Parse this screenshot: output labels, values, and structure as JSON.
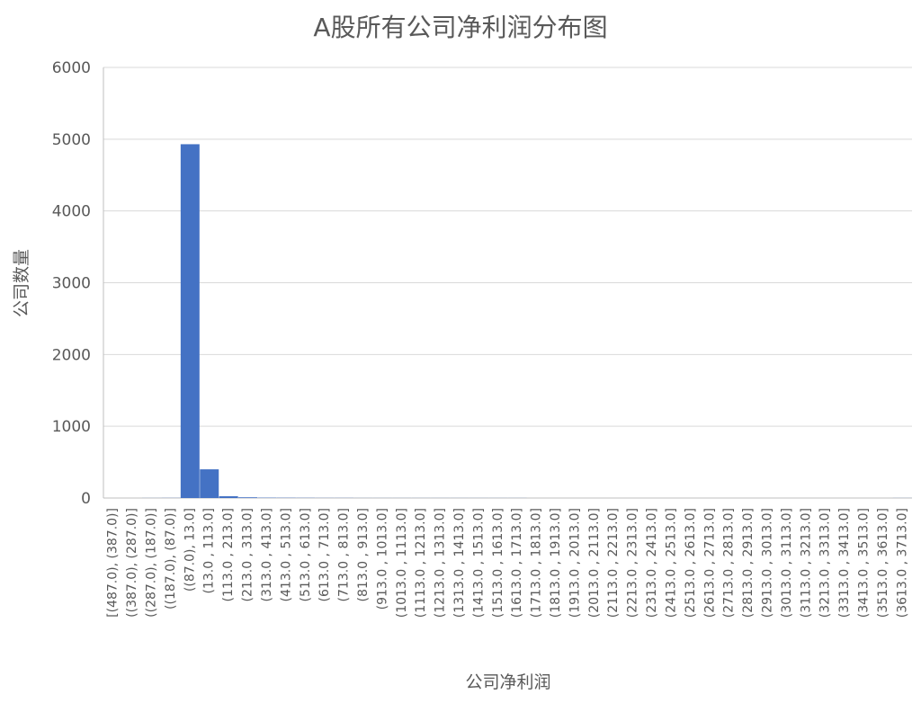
{
  "chart_data": {
    "type": "bar",
    "title": "A股所有公司净利润分布图",
    "xlabel": "公司净利润",
    "ylabel": "公司数量",
    "ylim": [
      0,
      6000
    ],
    "yticks": [
      0,
      1000,
      2000,
      3000,
      4000,
      5000,
      6000
    ],
    "grid": true,
    "bar_color": "#4472C4",
    "categories": [
      "[(487.0), (387.0)]",
      "((387.0), (287.0)]",
      "((287.0), (187.0)]",
      "((187.0), (87.0)]",
      "((87.0), 13.0]",
      "(13.0 , 113.0]",
      "(113.0 , 213.0]",
      "(213.0 , 313.0]",
      "(313.0 , 413.0]",
      "(413.0 , 513.0]",
      "(513.0 , 613.0]",
      "(613.0 , 713.0]",
      "(713.0 , 813.0]",
      "(813.0 , 913.0]",
      "(913.0 , 1013.0]",
      "(1013.0 , 1113.0]",
      "(1113.0 , 1213.0]",
      "(1213.0 , 1313.0]",
      "(1313.0 , 1413.0]",
      "(1413.0 , 1513.0]",
      "(1513.0 , 1613.0]",
      "(1613.0 , 1713.0]",
      "(1713.0 , 1813.0]",
      "(1813.0 , 1913.0]",
      "(1913.0 , 2013.0]",
      "(2013.0 , 2113.0]",
      "(2113.0 , 2213.0]",
      "(2213.0 , 2313.0]",
      "(2313.0 , 2413.0]",
      "(2413.0 , 2513.0]",
      "(2513.0 , 2613.0]",
      "(2613.0 , 2713.0]",
      "(2713.0 , 2813.0]",
      "(2813.0 , 2913.0]",
      "(2913.0 , 3013.0]",
      "(3013.0 , 3113.0]",
      "(3113.0 , 3213.0]",
      "(3213.0 , 3313.0]",
      "(3313.0 , 3413.0]",
      "(3413.0 , 3513.0]",
      "(3513.0 , 3613.0]",
      "(3613.0 , 3713.0]"
    ],
    "values": [
      0,
      0,
      1,
      2,
      4930,
      400,
      25,
      10,
      5,
      4,
      3,
      2,
      2,
      1,
      1,
      1,
      1,
      1,
      1,
      1,
      1,
      1,
      0,
      0,
      0,
      0,
      0,
      0,
      0,
      0,
      0,
      0,
      0,
      0,
      0,
      0,
      0,
      0,
      0,
      0,
      0,
      1
    ]
  }
}
